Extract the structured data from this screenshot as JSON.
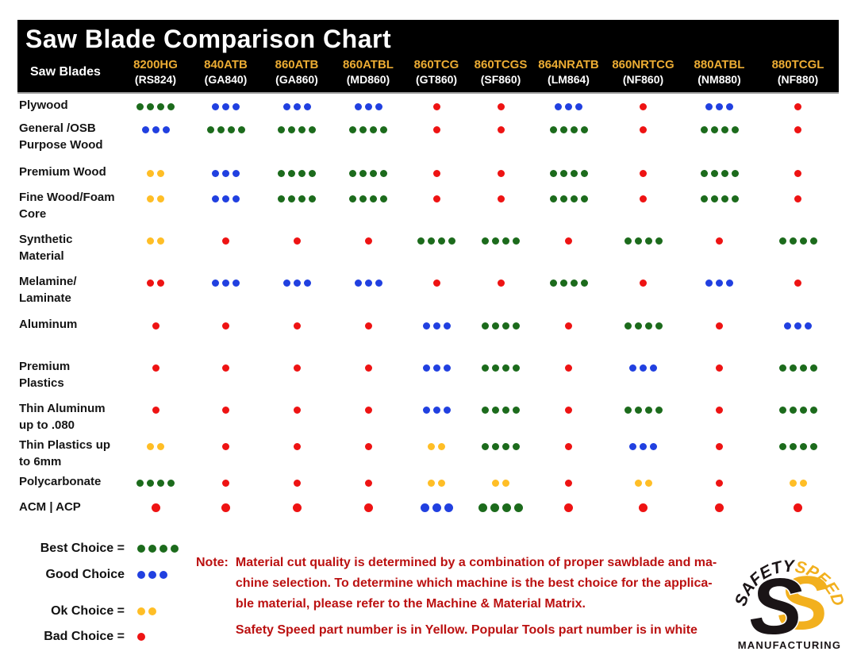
{
  "header": {
    "title": "Saw Blade Comparison Chart",
    "row_label": "Saw Blades"
  },
  "chart_data": {
    "type": "table",
    "title": "Saw Blade Comparison Chart",
    "columns": [
      {
        "model": "8200HG",
        "part": "(RS824)"
      },
      {
        "model": "840ATB",
        "part": "(GA840)"
      },
      {
        "model": "860ATB",
        "part": "(GA860)"
      },
      {
        "model": "860ATBL",
        "part": "(MD860)"
      },
      {
        "model": "860TCG",
        "part": "(GT860)"
      },
      {
        "model": "860TCGS",
        "part": "(SF860)"
      },
      {
        "model": "864NRATB",
        "part": "(LM864)"
      },
      {
        "model": "860NRTCG",
        "part": "(NF860)"
      },
      {
        "model": "880ATBL",
        "part": "(NM880)"
      },
      {
        "model": "880TCGL",
        "part": "(NF880)"
      }
    ],
    "rows": [
      {
        "label": [
          "Plywood"
        ],
        "cells": [
          "best",
          "good",
          "good",
          "good",
          "bad",
          "bad",
          "good",
          "bad",
          "good",
          "bad"
        ]
      },
      {
        "label": [
          "General /OSB",
          "Purpose Wood"
        ],
        "cells": [
          "good",
          "best",
          "best",
          "best",
          "bad",
          "bad",
          "best",
          "bad",
          "best",
          "bad"
        ]
      },
      {
        "label": [
          "Premium Wood"
        ],
        "cells": [
          "ok",
          "good",
          "best",
          "best",
          "bad",
          "bad",
          "best",
          "bad",
          "best",
          "bad"
        ]
      },
      {
        "label": [
          "Fine Wood/Foam",
          "Core"
        ],
        "cells": [
          "ok",
          "good",
          "best",
          "best",
          "bad",
          "bad",
          "best",
          "bad",
          "best",
          "bad"
        ]
      },
      {
        "label": [
          "Synthetic",
          "Material"
        ],
        "cells": [
          "ok",
          "bad",
          "bad",
          "bad",
          "best",
          "best",
          "bad",
          "best",
          "bad",
          "best"
        ]
      },
      {
        "label": [
          "Melamine/",
          "Laminate"
        ],
        "cells": [
          "bad2",
          "good",
          "good",
          "good",
          "bad",
          "bad",
          "best",
          "bad",
          "good",
          "bad"
        ]
      },
      {
        "label": [
          "Aluminum"
        ],
        "cells": [
          "bad",
          "bad",
          "bad",
          "bad",
          "good",
          "best",
          "bad",
          "best",
          "bad",
          "good"
        ]
      },
      {
        "label": [
          "Premium",
          "Plastics"
        ],
        "cells": [
          "bad",
          "bad",
          "bad",
          "bad",
          "good",
          "best",
          "bad",
          "good",
          "bad",
          "best"
        ]
      },
      {
        "label": [
          "Thin Aluminum",
          "up to .080"
        ],
        "cells": [
          "bad",
          "bad",
          "bad",
          "bad",
          "good",
          "best",
          "bad",
          "best",
          "bad",
          "best"
        ]
      },
      {
        "label": [
          "Thin Plastics up",
          "to 6mm"
        ],
        "cells": [
          "ok",
          "bad",
          "bad",
          "bad",
          "ok",
          "best",
          "bad",
          "good",
          "bad",
          "best"
        ]
      },
      {
        "label": [
          "Polycarbonate"
        ],
        "cells": [
          "best",
          "bad",
          "bad",
          "bad",
          "ok",
          "ok",
          "bad",
          "ok",
          "bad",
          "ok"
        ]
      },
      {
        "label": [
          "ACM | ACP"
        ],
        "cells": [
          "bad",
          "bad",
          "bad",
          "bad",
          "good",
          "best",
          "bad",
          "bad",
          "bad",
          "bad"
        ]
      }
    ],
    "rating_scale": {
      "best": {
        "dots": 4,
        "color": "#1c6b1c",
        "meaning": "Best Choice"
      },
      "good": {
        "dots": 3,
        "color": "#2140e0",
        "meaning": "Good Choice"
      },
      "ok": {
        "dots": 2,
        "color": "#ffbe26",
        "meaning": "Ok Choice"
      },
      "bad": {
        "dots": 1,
        "color": "#ee1313",
        "meaning": "Bad Choice"
      },
      "bad2": {
        "dots": 2,
        "color": "#ee1313",
        "meaning": "Bad Choice (printed with 2 dots)"
      }
    }
  },
  "legend": {
    "items": [
      {
        "label": "Best Choice =",
        "rating": "best"
      },
      {
        "label": "Good Choice",
        "rating": "good"
      },
      {
        "label": "Ok Choice =",
        "rating": "ok"
      },
      {
        "label": "Bad Choice =",
        "rating": "bad"
      }
    ]
  },
  "note": {
    "label": "Note:",
    "line1": "Material cut quality is determined by a combination of proper sawblade and ma-",
    "line2": "chine selection. To determine which machine is the best choice for the applica-",
    "line3": "ble material, please refer to the Machine & Material Matrix.",
    "line4": "Safety Speed part number is in Yellow. Popular Tools part number is in white"
  },
  "logo": {
    "word1": "SAFETY",
    "word2": "SPEED",
    "s1": "S",
    "s2": "S",
    "sub": "MANUFACTURING",
    "yellow": "#f2b01e",
    "black": "#1a1416"
  },
  "colors": {
    "header_bg": "#000000",
    "header_model_yellow": "#ecac33",
    "header_part_white": "#ffffff",
    "note_red": "#bb1111",
    "dot_green": "#1c6b1c",
    "dot_blue": "#2140e0",
    "dot_yellow": "#ffbe26",
    "dot_red": "#ee1313"
  }
}
